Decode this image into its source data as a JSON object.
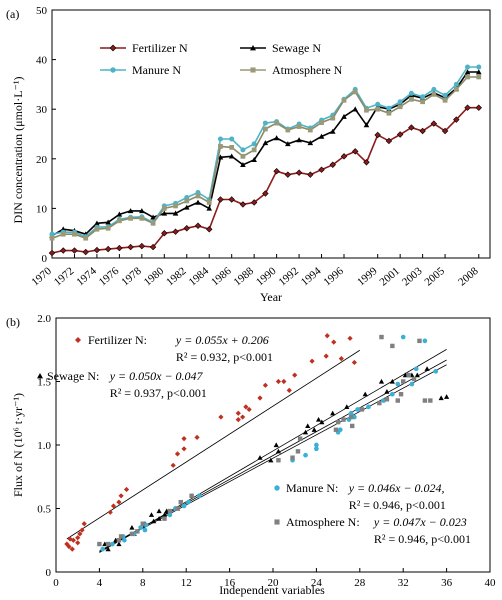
{
  "chart_data": [
    {
      "type": "line",
      "panel_label": "(a)",
      "xlabel": "Year",
      "ylabel": "DIN concentration (μmol·L⁻¹)",
      "ylim": [
        0,
        50
      ],
      "yticks": [
        0,
        10,
        20,
        30,
        40,
        50
      ],
      "xlim": [
        1970,
        2009
      ],
      "xticks": [
        1970,
        1972,
        1974,
        1976,
        1978,
        1980,
        1982,
        1984,
        1986,
        1988,
        1990,
        1992,
        1994,
        1996,
        1999,
        2001,
        2003,
        2005,
        2008
      ],
      "xtick_labels": [
        "1970",
        "1972",
        "1974",
        "1976",
        "1978",
        "1980",
        "1982",
        "1984",
        "1986",
        "1988",
        "1990",
        "1992",
        "1994",
        "1996",
        "1999",
        "2001",
        "2003",
        "2005",
        "2008"
      ],
      "legend_position": "top-left",
      "x": [
        1970,
        1971,
        1972,
        1973,
        1974,
        1975,
        1976,
        1977,
        1978,
        1979,
        1980,
        1981,
        1982,
        1983,
        1984,
        1985,
        1986,
        1987,
        1988,
        1989,
        1990,
        1991,
        1992,
        1993,
        1994,
        1995,
        1996,
        1997,
        1998,
        1999,
        2000,
        2001,
        2002,
        2003,
        2004,
        2005,
        2006,
        2007,
        2008
      ],
      "series": [
        {
          "name": "Fertilizer N",
          "color": "#8b1a1a",
          "marker": "diamond",
          "values": [
            1.0,
            1.5,
            1.5,
            1.2,
            1.6,
            1.8,
            2.0,
            2.2,
            2.4,
            2.2,
            5.0,
            5.3,
            6.0,
            6.5,
            5.8,
            11.8,
            11.8,
            10.8,
            11.2,
            13.0,
            17.5,
            16.8,
            17.2,
            16.8,
            17.8,
            18.8,
            20.5,
            21.5,
            19.3,
            24.8,
            23.6,
            24.9,
            26.3,
            25.6,
            27.1,
            25.6,
            27.9,
            30.3,
            30.3
          ]
        },
        {
          "name": "Sewage N",
          "color": "#000000",
          "marker": "triangle",
          "values": [
            4.5,
            5.8,
            5.5,
            4.8,
            7.0,
            7.2,
            8.8,
            9.5,
            9.5,
            8.2,
            9.0,
            9.0,
            10.2,
            11.2,
            10.0,
            20.3,
            20.5,
            18.8,
            19.8,
            23.2,
            24.2,
            23.0,
            23.8,
            23.2,
            24.5,
            25.5,
            28.5,
            30.0,
            26.8,
            30.5,
            30.0,
            31.0,
            32.8,
            32.2,
            33.3,
            32.3,
            34.2,
            37.5,
            37.5
          ]
        },
        {
          "name": "Manure N",
          "color": "#4fb3c8",
          "marker": "circle",
          "values": [
            4.8,
            5.2,
            5.2,
            4.3,
            6.2,
            6.3,
            7.8,
            8.2,
            8.3,
            7.2,
            10.5,
            11.0,
            12.2,
            13.2,
            11.8,
            24.0,
            24.0,
            21.8,
            23.0,
            27.2,
            27.5,
            26.0,
            27.0,
            26.2,
            27.8,
            28.8,
            32.0,
            34.0,
            30.2,
            31.0,
            30.2,
            31.5,
            33.2,
            32.5,
            34.0,
            32.8,
            35.0,
            38.5,
            38.5
          ]
        },
        {
          "name": "Atmosphere N",
          "color": "#9a9a78",
          "marker": "square",
          "values": [
            4.0,
            4.8,
            4.8,
            4.0,
            5.8,
            6.0,
            7.5,
            8.0,
            8.0,
            7.0,
            10.0,
            10.5,
            11.5,
            12.5,
            11.2,
            22.5,
            22.3,
            20.5,
            21.8,
            26.0,
            27.2,
            25.8,
            26.5,
            25.8,
            27.3,
            28.2,
            31.8,
            33.5,
            29.8,
            30.0,
            29.2,
            30.5,
            32.0,
            31.5,
            33.0,
            31.8,
            34.0,
            36.5,
            36.5
          ]
        }
      ]
    },
    {
      "type": "scatter",
      "panel_label": "(b)",
      "xlabel": "Independent variables",
      "ylabel": "Flux of N (10⁶ t·yr⁻¹)",
      "xlim": [
        0,
        40
      ],
      "ylim": [
        0,
        2.0
      ],
      "xticks": [
        0,
        4,
        8,
        12,
        16,
        20,
        24,
        28,
        32,
        36,
        40
      ],
      "yticks": [
        0,
        0.5,
        1.0,
        1.5,
        2.0
      ],
      "ytick_labels": [
        "0",
        "0.5",
        "1.0",
        "1.5",
        "2.0"
      ],
      "series": [
        {
          "name": "Fertilizer N",
          "color": "#c03020",
          "marker": "diamond",
          "fit": {
            "slope": 0.055,
            "intercept": 0.206,
            "x0": 1,
            "x1": 28
          },
          "label_prefix": "Fertilizer N:",
          "equation": "y = 0.055x + 0.206",
          "r2_text": "R² = 0.932, p<0.001",
          "points": [
            [
              1.0,
              0.22
            ],
            [
              1.2,
              0.2
            ],
            [
              1.3,
              0.26
            ],
            [
              1.5,
              0.18
            ],
            [
              1.6,
              0.25
            ],
            [
              2.0,
              0.27
            ],
            [
              2.0,
              0.23
            ],
            [
              2.2,
              0.3
            ],
            [
              2.4,
              0.33
            ],
            [
              2.6,
              0.38
            ],
            [
              5.0,
              0.47
            ],
            [
              5.3,
              0.52
            ],
            [
              6.0,
              0.6
            ],
            [
              6.5,
              0.65
            ],
            [
              5.8,
              0.55
            ],
            [
              10.8,
              0.84
            ],
            [
              11.2,
              0.93
            ],
            [
              11.8,
              0.97
            ],
            [
              11.8,
              1.05
            ],
            [
              13.0,
              1.06
            ],
            [
              16.8,
              1.25
            ],
            [
              17.2,
              1.22
            ],
            [
              17.5,
              1.3
            ],
            [
              16.8,
              1.2
            ],
            [
              17.8,
              1.28
            ],
            [
              15.2,
              1.22
            ],
            [
              18.8,
              1.37
            ],
            [
              20.5,
              1.5
            ],
            [
              21.5,
              1.43
            ],
            [
              19.3,
              1.47
            ],
            [
              21.0,
              1.5
            ],
            [
              23.6,
              1.66
            ],
            [
              24.9,
              1.7
            ],
            [
              26.3,
              1.68
            ],
            [
              25.6,
              1.81
            ],
            [
              27.1,
              1.84
            ],
            [
              25.0,
              1.86
            ],
            [
              27.5,
              1.65
            ],
            [
              22.0,
              1.55
            ]
          ]
        },
        {
          "name": "Sewage N",
          "color": "#000000",
          "marker": "triangle",
          "fit": {
            "slope": 0.05,
            "intercept": -0.047,
            "x0": 4,
            "x1": 36
          },
          "label_prefix": "Sewage N:",
          "equation": "y = 0.050x − 0.047",
          "r2_text": "R² = 0.937, p<0.001",
          "points": [
            [
              4.5,
              0.22
            ],
            [
              5.5,
              0.25
            ],
            [
              5.8,
              0.22
            ],
            [
              4.8,
              0.18
            ],
            [
              7.0,
              0.35
            ],
            [
              7.2,
              0.3
            ],
            [
              8.8,
              0.45
            ],
            [
              9.5,
              0.42
            ],
            [
              9.5,
              0.48
            ],
            [
              8.2,
              0.38
            ],
            [
              9.0,
              0.4
            ],
            [
              10.2,
              0.48
            ],
            [
              11.2,
              0.5
            ],
            [
              10.0,
              0.45
            ],
            [
              18.8,
              0.9
            ],
            [
              19.8,
              0.88
            ],
            [
              20.3,
              1.0
            ],
            [
              20.5,
              0.95
            ],
            [
              23.2,
              1.15
            ],
            [
              23.8,
              1.12
            ],
            [
              24.2,
              1.2
            ],
            [
              23.0,
              1.1
            ],
            [
              24.5,
              1.18
            ],
            [
              25.5,
              1.25
            ],
            [
              26.8,
              1.3
            ],
            [
              28.5,
              1.4
            ],
            [
              30.0,
              1.5
            ],
            [
              30.5,
              1.42
            ],
            [
              31.0,
              1.5
            ],
            [
              32.2,
              1.55
            ],
            [
              32.8,
              1.55
            ],
            [
              33.3,
              1.55
            ],
            [
              34.2,
              1.6
            ],
            [
              36.0,
              1.38
            ],
            [
              35.5,
              1.37
            ]
          ]
        },
        {
          "name": "Manure N",
          "color": "#3ab0d8",
          "marker": "circle",
          "fit": {
            "slope": 0.046,
            "intercept": -0.024,
            "x0": 4,
            "x1": 36
          },
          "label_prefix": "Manure N:",
          "equation": "y = 0.046x − 0.024,",
          "r2_text": "R² = 0.946, p<0.001",
          "points": [
            [
              4.3,
              0.18
            ],
            [
              5.2,
              0.22
            ],
            [
              6.2,
              0.28
            ],
            [
              6.3,
              0.25
            ],
            [
              7.2,
              0.3
            ],
            [
              7.8,
              0.35
            ],
            [
              8.2,
              0.33
            ],
            [
              8.3,
              0.37
            ],
            [
              10.5,
              0.45
            ],
            [
              11.0,
              0.5
            ],
            [
              11.8,
              0.52
            ],
            [
              12.2,
              0.55
            ],
            [
              13.2,
              0.6
            ],
            [
              21.8,
              0.88
            ],
            [
              23.0,
              0.92
            ],
            [
              24.0,
              0.97
            ],
            [
              24.0,
              1.0
            ],
            [
              26.0,
              1.1
            ],
            [
              26.2,
              1.12
            ],
            [
              27.0,
              1.2
            ],
            [
              27.2,
              1.25
            ],
            [
              27.5,
              1.22
            ],
            [
              27.8,
              1.28
            ],
            [
              28.8,
              1.3
            ],
            [
              30.2,
              1.35
            ],
            [
              31.0,
              1.4
            ],
            [
              31.5,
              1.48
            ],
            [
              32.0,
              1.85
            ],
            [
              32.5,
              1.55
            ],
            [
              33.2,
              1.6
            ],
            [
              34.0,
              1.82
            ],
            [
              35.0,
              1.58
            ],
            [
              32.8,
              1.48
            ]
          ]
        },
        {
          "name": "Atmosphere N",
          "color": "#808080",
          "marker": "square",
          "fit": {
            "slope": 0.047,
            "intercept": -0.023,
            "x0": 4,
            "x1": 36
          },
          "label_prefix": "Atmosphere N:",
          "equation": "y = 0.047x − 0.023",
          "r2_text": "R² = 0.946, p<0.001",
          "points": [
            [
              4.0,
              0.22
            ],
            [
              4.8,
              0.22
            ],
            [
              5.8,
              0.25
            ],
            [
              6.0,
              0.28
            ],
            [
              7.0,
              0.3
            ],
            [
              7.5,
              0.32
            ],
            [
              8.0,
              0.38
            ],
            [
              10.0,
              0.42
            ],
            [
              10.5,
              0.48
            ],
            [
              11.5,
              0.55
            ],
            [
              12.5,
              0.6
            ],
            [
              11.2,
              0.5
            ],
            [
              20.5,
              0.88
            ],
            [
              21.8,
              0.9
            ],
            [
              22.3,
              0.95
            ],
            [
              22.5,
              1.05
            ],
            [
              25.8,
              1.12
            ],
            [
              26.0,
              1.18
            ],
            [
              26.5,
              1.2
            ],
            [
              27.2,
              1.22
            ],
            [
              27.3,
              1.15
            ],
            [
              28.2,
              1.28
            ],
            [
              29.8,
              1.33
            ],
            [
              30.0,
              1.85
            ],
            [
              30.5,
              1.36
            ],
            [
              31.5,
              1.35
            ],
            [
              31.8,
              1.4
            ],
            [
              32.0,
              1.5
            ],
            [
              33.0,
              1.52
            ],
            [
              34.0,
              1.35
            ],
            [
              34.5,
              1.35
            ],
            [
              33.5,
              1.82
            ],
            [
              31.0,
              1.78
            ],
            [
              32.5,
              1.55
            ]
          ]
        }
      ]
    }
  ]
}
